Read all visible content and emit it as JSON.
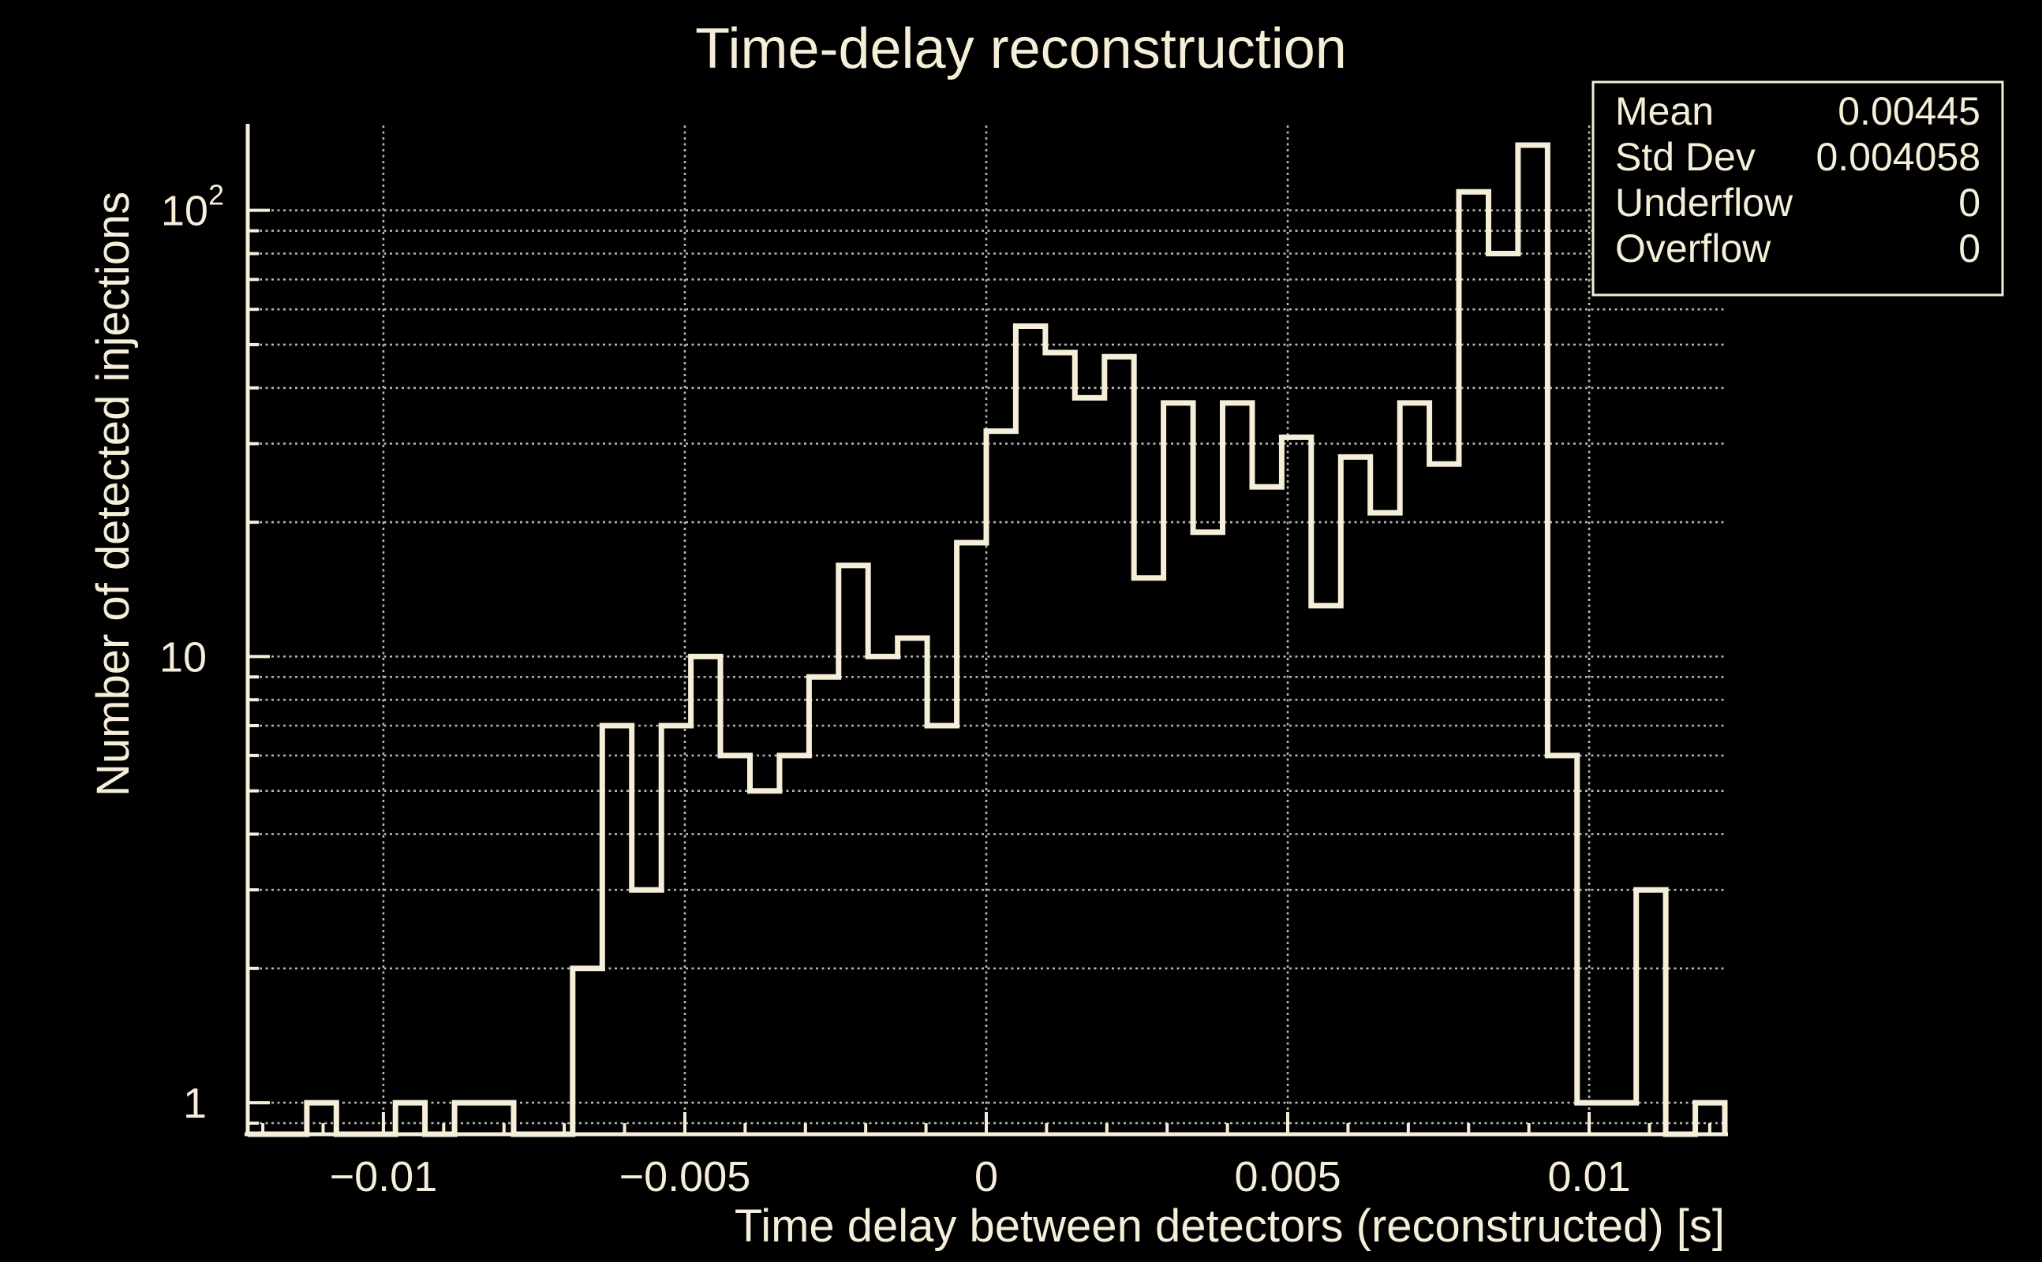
{
  "title": "Time-delay reconstruction",
  "colors": {
    "background": "#000000",
    "foreground": "#f5eed9",
    "grid": "#c9c9c9"
  },
  "stats_box": {
    "rows": [
      {
        "label": "Mean",
        "value": "0.00445"
      },
      {
        "label": "Std Dev",
        "value": "0.004058"
      },
      {
        "label": "Underflow",
        "value": "0"
      },
      {
        "label": "Overflow",
        "value": "0"
      }
    ]
  },
  "chart_data": {
    "type": "bar",
    "subtype": "step-histogram",
    "title": "Time-delay reconstruction",
    "xlabel": "Time delay between detectors (reconstructed) [s]",
    "ylabel": "Number of detected injections",
    "log_y": true,
    "grid": "dotted",
    "legend_position": "none",
    "xlim": [
      -0.01225,
      0.01225
    ],
    "ylim": [
      0.85,
      155
    ],
    "bin_start": -0.01225,
    "bin_width": 0.00049,
    "values": [
      0,
      0,
      1,
      0,
      0,
      1,
      0,
      1,
      1,
      0,
      0,
      2,
      7,
      3,
      7,
      10,
      6,
      5,
      6,
      9,
      16,
      10,
      11,
      7,
      18,
      32,
      55,
      48,
      38,
      47,
      15,
      37,
      19,
      37,
      24,
      31,
      13,
      28,
      21,
      37,
      27,
      110,
      80,
      140,
      6,
      1,
      1,
      3,
      0,
      1
    ],
    "x_ticks": [
      {
        "value": -0.01,
        "label": "−0.01"
      },
      {
        "value": -0.005,
        "label": "−0.005"
      },
      {
        "value": 0,
        "label": "0"
      },
      {
        "value": 0.005,
        "label": "0.005"
      },
      {
        "value": 0.01,
        "label": "0.01"
      }
    ],
    "x_minor_tick_start": -0.012,
    "x_minor_tick_step": 0.001,
    "x_minor_tick_count": 25,
    "y_ticks": [
      {
        "value": 1,
        "label": "1",
        "sup": ""
      },
      {
        "value": 10,
        "label": "10",
        "sup": ""
      },
      {
        "value": 100,
        "label": "10",
        "sup": "2"
      }
    ],
    "y_grid_values": [
      0.9,
      1,
      2,
      3,
      4,
      5,
      6,
      7,
      8,
      9,
      10,
      20,
      30,
      40,
      50,
      60,
      70,
      80,
      90,
      100
    ]
  }
}
